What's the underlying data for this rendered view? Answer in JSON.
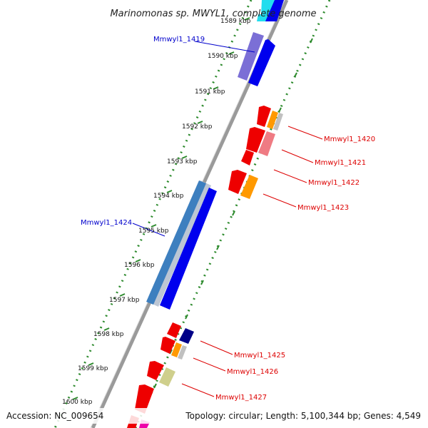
{
  "title": "Marinomonas sp. MWYL1, complete genome",
  "footer": {
    "accession": "Accession: NC_009654",
    "topology": "Topology: circular; Length: 5,100,344 bp; Genes: 4,549"
  },
  "colors": {
    "backbone": "#9a9a9a",
    "dotted_ring": "#2e8b2e",
    "forward_label": "#0000cc",
    "reverse_label": "#dd0000"
  },
  "ticks": [
    {
      "label": "1589 kbp"
    },
    {
      "label": "1590 kbp"
    },
    {
      "label": "1591 kbp"
    },
    {
      "label": "1592 kbp"
    },
    {
      "label": "1593 kbp"
    },
    {
      "label": "1594 kbp"
    },
    {
      "label": "1595 kbp"
    },
    {
      "label": "1596 kbp"
    },
    {
      "label": "1597 kbp"
    },
    {
      "label": "1598 kbp"
    },
    {
      "label": "1599 kbp"
    },
    {
      "label": "1600 kbp"
    }
  ],
  "gene_labels": [
    {
      "text": "Mmwyl1_1419",
      "strand": "forward"
    },
    {
      "text": "Mmwyl1_1424",
      "strand": "forward"
    },
    {
      "text": "Mmwyl1_1420",
      "strand": "reverse"
    },
    {
      "text": "Mmwyl1_1421",
      "strand": "reverse"
    },
    {
      "text": "Mmwyl1_1422",
      "strand": "reverse"
    },
    {
      "text": "Mmwyl1_1423",
      "strand": "reverse"
    },
    {
      "text": "Mmwyl1_1425",
      "strand": "reverse"
    },
    {
      "text": "Mmwyl1_1426",
      "strand": "reverse"
    },
    {
      "text": "Mmwyl1_1427",
      "strand": "reverse"
    }
  ]
}
